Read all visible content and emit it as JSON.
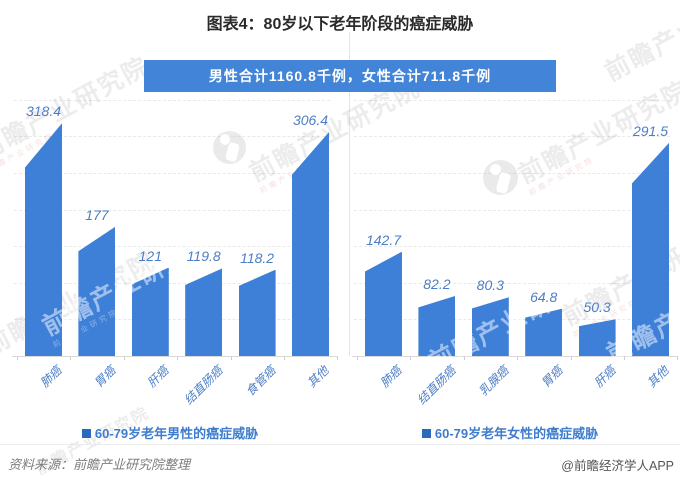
{
  "page": {
    "title": "图表4：80岁以下老年阶段的癌症威胁"
  },
  "banner": {
    "text": "男性合计1160.8千例，女性合计711.8千例"
  },
  "watermark": {
    "brand": "前瞻产业研究院"
  },
  "footer": {
    "source": "资料来源：前瞻产业研究院整理",
    "credit": "@前瞻经济学人APP"
  },
  "colors": {
    "bar": "#3E7FD8",
    "banner_bg": "#4285D8",
    "value_label": "#4D7EC5",
    "legend_text": "#3E7CCD",
    "legend_swatch": "#2C69BE",
    "grid": "#E9E9E9"
  },
  "chart_data": [
    {
      "type": "bar",
      "legend": "60-79岁老年男性的癌症威胁",
      "categories": [
        "肺癌",
        "胃癌",
        "肝癌",
        "结直肠癌",
        "食管癌",
        "其他"
      ],
      "values": [
        318.4,
        177,
        121,
        119.8,
        118.2,
        306.4
      ],
      "total_label": "男性合计1160.8千例",
      "unit": "千例",
      "ylim": [
        0,
        350
      ],
      "grid": "horizontal-dashed",
      "legend_position": "bottom"
    },
    {
      "type": "bar",
      "legend": "60-79岁老年女性的癌症威胁",
      "categories": [
        "肺癌",
        "结直肠癌",
        "乳腺癌",
        "胃癌",
        "肝癌",
        "其他"
      ],
      "values": [
        142.7,
        82.2,
        80.3,
        64.8,
        50.3,
        291.5
      ],
      "total_label": "女性合计711.8千例",
      "unit": "千例",
      "ylim": [
        0,
        350
      ],
      "grid": "horizontal-dashed",
      "legend_position": "bottom"
    }
  ]
}
